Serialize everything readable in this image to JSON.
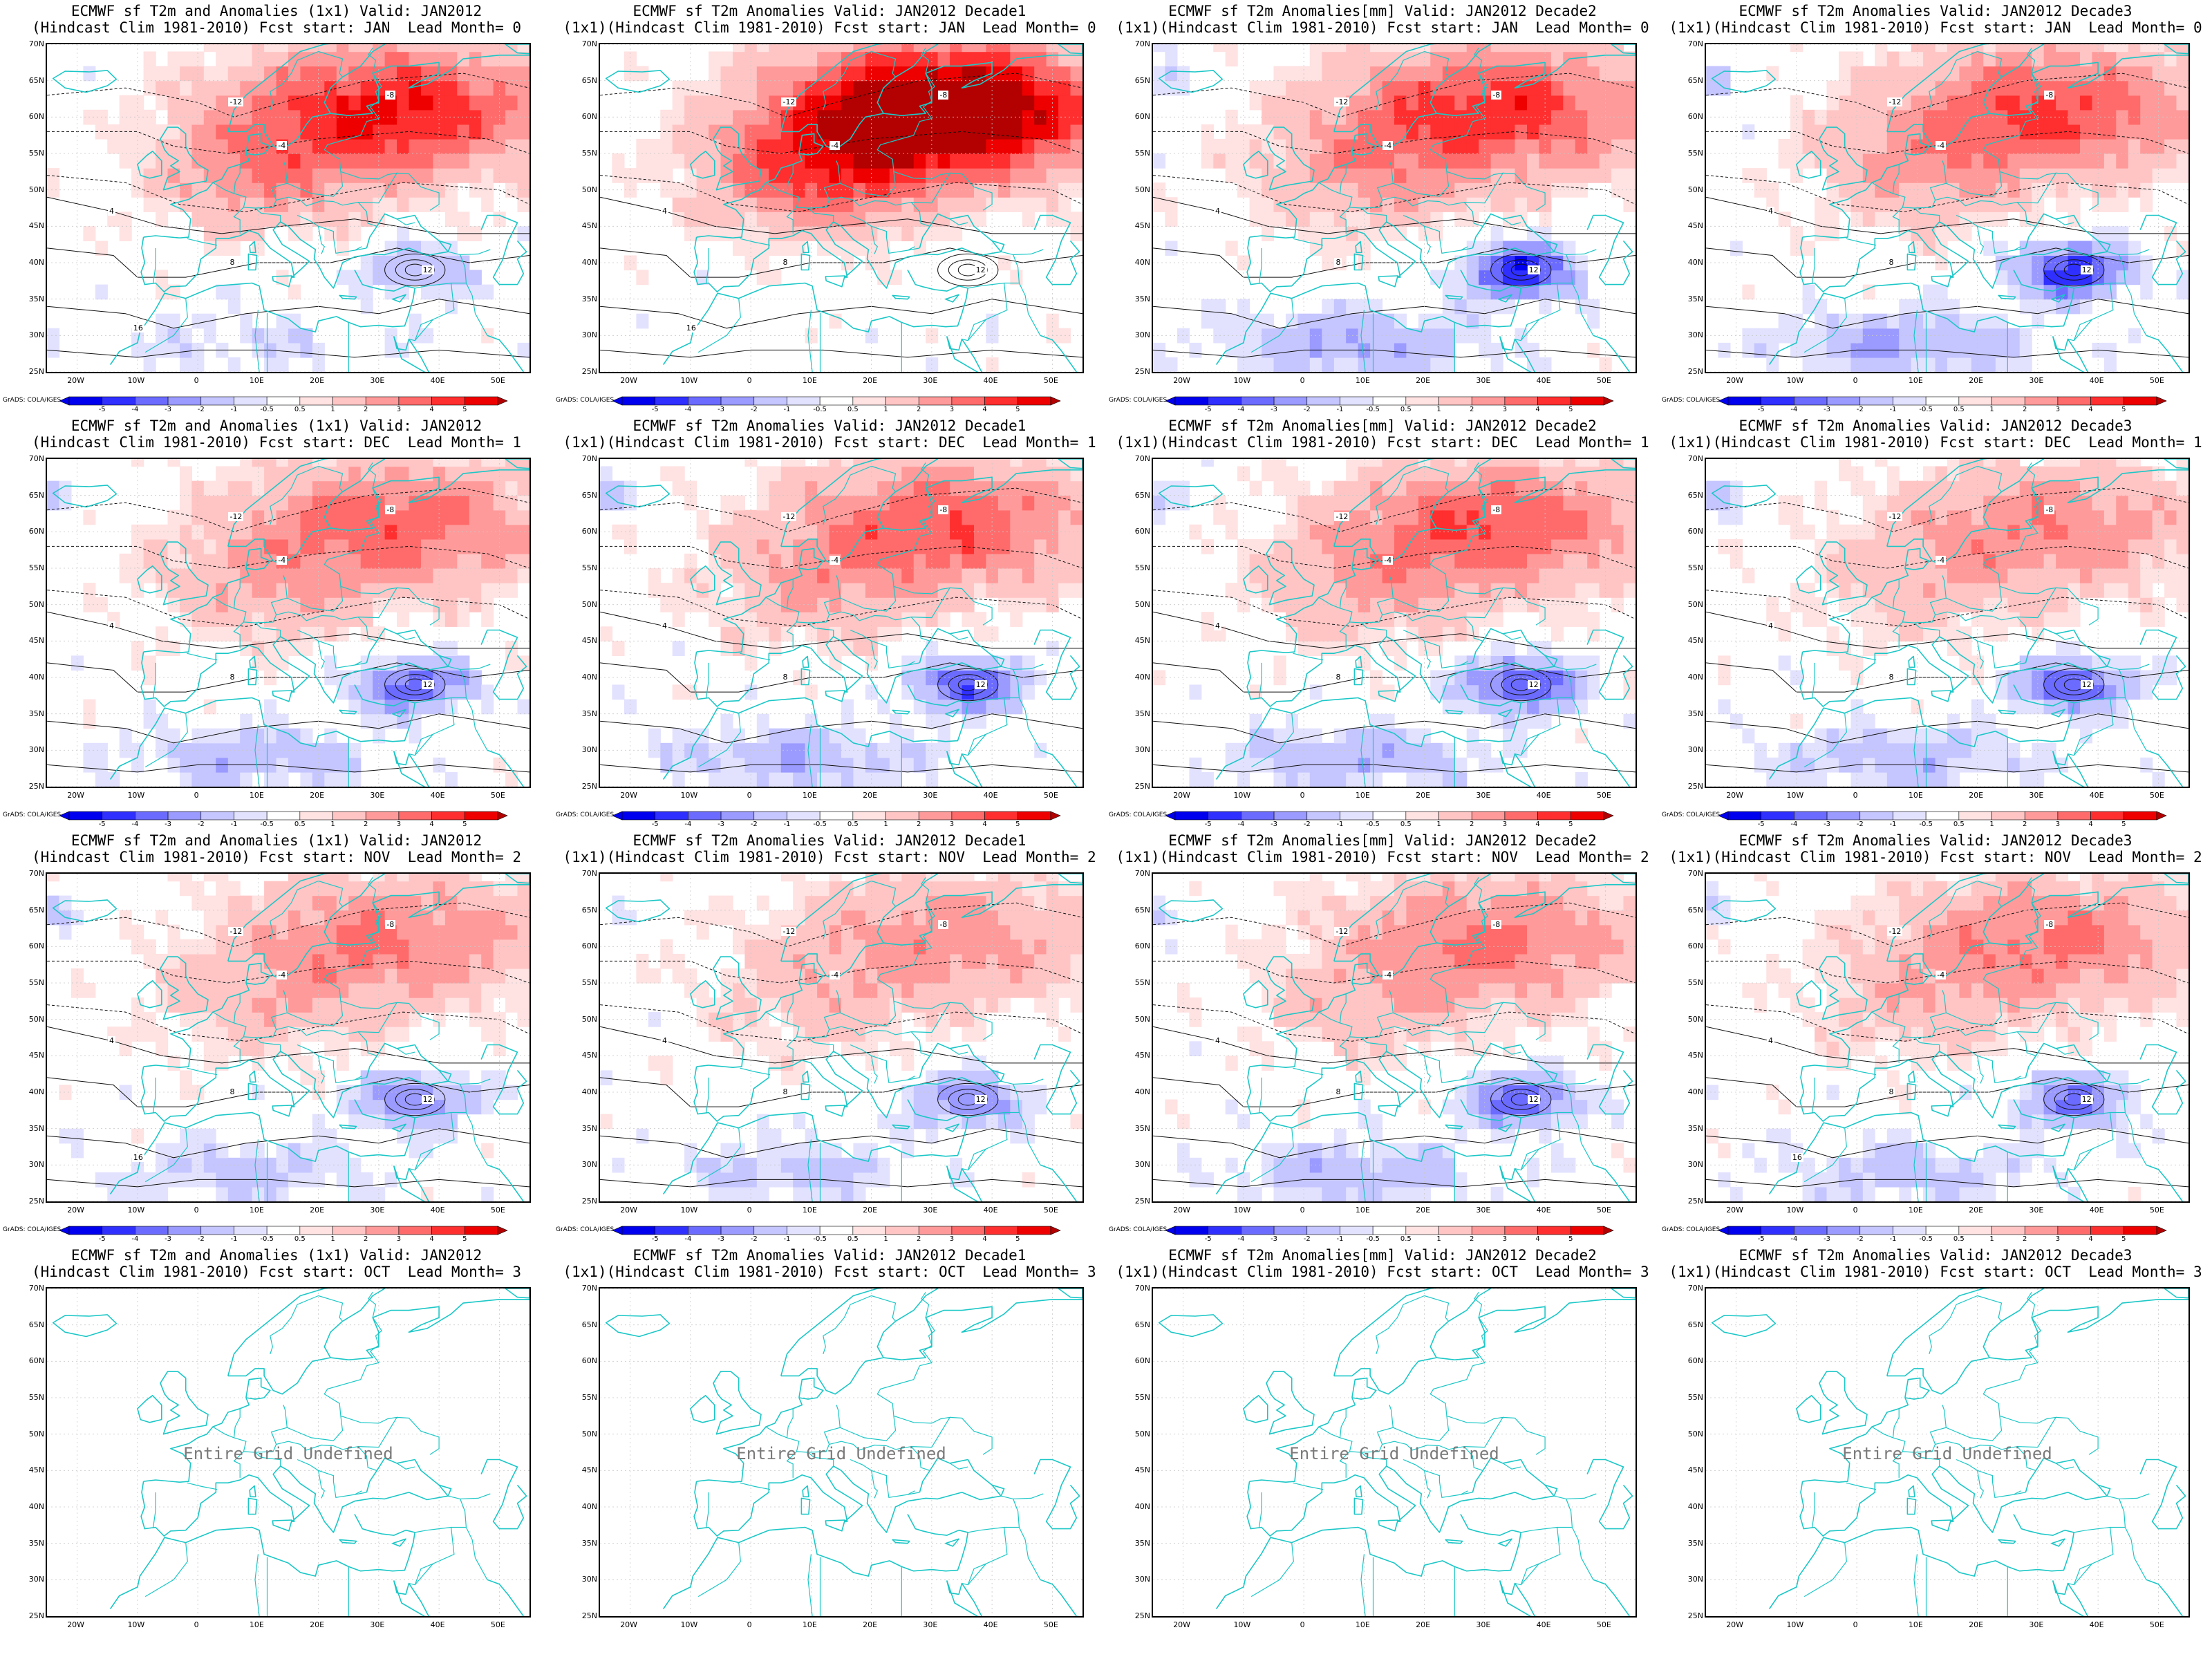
{
  "colors": {
    "coast": "#1cc7c7",
    "contour": "#111111",
    "neg5": "#0000ee",
    "neg4": "#2f2fff",
    "neg3": "#6b6bff",
    "neg2": "#9a9aff",
    "neg1": "#c5c5ff",
    "neg05": "#e2e2ff",
    "pos05": "#ffe2e2",
    "pos1": "#ffc5c5",
    "pos2": "#ff9a9a",
    "pos3": "#ff6b6b",
    "pos4": "#ff2f2f",
    "pos5": "#ee0000",
    "pos6": "#b30000"
  },
  "lat_labels": [
    "70N",
    "65N",
    "60N",
    "55N",
    "50N",
    "45N",
    "40N",
    "35N",
    "30N",
    "25N"
  ],
  "lon_labels": [
    "20W",
    "10W",
    "0",
    "10E",
    "20E",
    "30E",
    "40E",
    "50E"
  ],
  "colorbar_ticks": [
    "-5",
    "-4",
    "-3",
    "-2",
    "-1",
    "-0.5",
    "0.5",
    "1",
    "2",
    "3",
    "4",
    "5"
  ],
  "credit": "GrADS: COLA/IGES",
  "undefined_text": "Entire Grid Undefined",
  "rows": [
    {
      "panels": [
        {
          "t1": "ECMWF sf T2m and Anomalies (1x1) Valid: JAN2012",
          "t2": "(Hindcast Clim 1981-2010) Fcst start: JAN  Lead Month= 0",
          "defined": true,
          "warm": 1.0,
          "cold": 0.35,
          "contours": [
            "-12",
            "-8",
            "-4",
            "4",
            "8",
            "12",
            "16"
          ]
        },
        {
          "t1": "ECMWF sf T2m Anomalies Valid: JAN2012 Decade1",
          "t2": "(1x1)(Hindcast Clim 1981-2010) Fcst start: JAN  Lead Month= 0",
          "defined": true,
          "warm": 1.6,
          "cold": 0.0,
          "contours": [
            "-12",
            "-8",
            "-4",
            "4",
            "8",
            "12",
            "16"
          ]
        },
        {
          "t1": "ECMWF sf T2m Anomalies[mm] Valid: JAN2012 Decade2",
          "t2": "(1x1)(Hindcast Clim 1981-2010) Fcst start: JAN  Lead Month= 0",
          "defined": true,
          "warm": 0.9,
          "cold": 0.9,
          "contours": [
            "-12",
            "-8",
            "-4",
            "4",
            "8",
            "12"
          ]
        },
        {
          "t1": "ECMWF sf T2m Anomalies Valid: JAN2012 Decade3",
          "t2": "(1x1)(Hindcast Clim 1981-2010) Fcst start: JAN  Lead Month= 0",
          "defined": true,
          "warm": 0.8,
          "cold": 0.9,
          "contours": [
            "-12",
            "-8",
            "-4",
            "4",
            "8",
            "12"
          ]
        }
      ]
    },
    {
      "panels": [
        {
          "t1": "ECMWF sf T2m and Anomalies (1x1) Valid: JAN2012",
          "t2": "(Hindcast Clim 1981-2010) Fcst start: DEC  Lead Month= 1",
          "defined": true,
          "warm": 0.7,
          "cold": 0.7,
          "contours": [
            "-12",
            "-8",
            "-4",
            "4",
            "8",
            "12"
          ]
        },
        {
          "t1": "ECMWF sf T2m Anomalies Valid: JAN2012 Decade1",
          "t2": "(1x1)(Hindcast Clim 1981-2010) Fcst start: DEC  Lead Month= 1",
          "defined": true,
          "warm": 0.75,
          "cold": 0.75,
          "contours": [
            "-12",
            "-8",
            "-4",
            "4",
            "8",
            "12"
          ]
        },
        {
          "t1": "ECMWF sf T2m Anomalies[mm] Valid: JAN2012 Decade2",
          "t2": "(1x1)(Hindcast Clim 1981-2010) Fcst start: DEC  Lead Month= 1",
          "defined": true,
          "warm": 0.75,
          "cold": 0.8,
          "contours": [
            "-12",
            "-8",
            "-4",
            "4",
            "8",
            "12"
          ]
        },
        {
          "t1": "ECMWF sf T2m Anomalies Valid: JAN2012 Decade3",
          "t2": "(1x1)(Hindcast Clim 1981-2010) Fcst start: DEC  Lead Month= 1",
          "defined": true,
          "warm": 0.55,
          "cold": 0.7,
          "contours": [
            "-12",
            "-8",
            "-4",
            "4",
            "8",
            "12"
          ]
        }
      ]
    },
    {
      "panels": [
        {
          "t1": "ECMWF sf T2m and Anomalies (1x1) Valid: JAN2012",
          "t2": "(Hindcast Clim 1981-2010) Fcst start: NOV  Lead Month= 2",
          "defined": true,
          "warm": 0.6,
          "cold": 0.55,
          "contours": [
            "-12",
            "-8",
            "-4",
            "4",
            "8",
            "12",
            "16"
          ]
        },
        {
          "t1": "ECMWF sf T2m Anomalies Valid: JAN2012 Decade1",
          "t2": "(1x1)(Hindcast Clim 1981-2010) Fcst start: NOV  Lead Month= 2",
          "defined": true,
          "warm": 0.5,
          "cold": 0.55,
          "contours": [
            "-12",
            "-8",
            "-4",
            "4",
            "8",
            "12"
          ]
        },
        {
          "t1": "ECMWF sf T2m Anomalies[mm] Valid: JAN2012 Decade2",
          "t2": "(1x1)(Hindcast Clim 1981-2010) Fcst start: NOV  Lead Month= 2",
          "defined": true,
          "warm": 0.6,
          "cold": 0.7,
          "contours": [
            "-12",
            "-8",
            "-4",
            "4",
            "8",
            "12"
          ]
        },
        {
          "t1": "ECMWF sf T2m Anomalies Valid: JAN2012 Decade3",
          "t2": "(1x1)(Hindcast Clim 1981-2010) Fcst start: NOV  Lead Month= 2",
          "defined": true,
          "warm": 0.6,
          "cold": 0.6,
          "contours": [
            "-12",
            "-8",
            "-4",
            "4",
            "8",
            "12",
            "16"
          ]
        }
      ]
    },
    {
      "panels": [
        {
          "t1": "ECMWF sf T2m and Anomalies (1x1) Valid: JAN2012",
          "t2": "(Hindcast Clim 1981-2010) Fcst start: OCT  Lead Month= 3",
          "defined": false
        },
        {
          "t1": "ECMWF sf T2m Anomalies Valid: JAN2012 Decade1",
          "t2": "(1x1)(Hindcast Clim 1981-2010) Fcst start: OCT  Lead Month= 3",
          "defined": false
        },
        {
          "t1": "ECMWF sf T2m Anomalies[mm] Valid: JAN2012 Decade2",
          "t2": "(1x1)(Hindcast Clim 1981-2010) Fcst start: OCT  Lead Month= 3",
          "defined": false
        },
        {
          "t1": "ECMWF sf T2m Anomalies Valid: JAN2012 Decade3",
          "t2": "(1x1)(Hindcast Clim 1981-2010) Fcst start: OCT  Lead Month= 3",
          "defined": false
        }
      ]
    }
  ]
}
